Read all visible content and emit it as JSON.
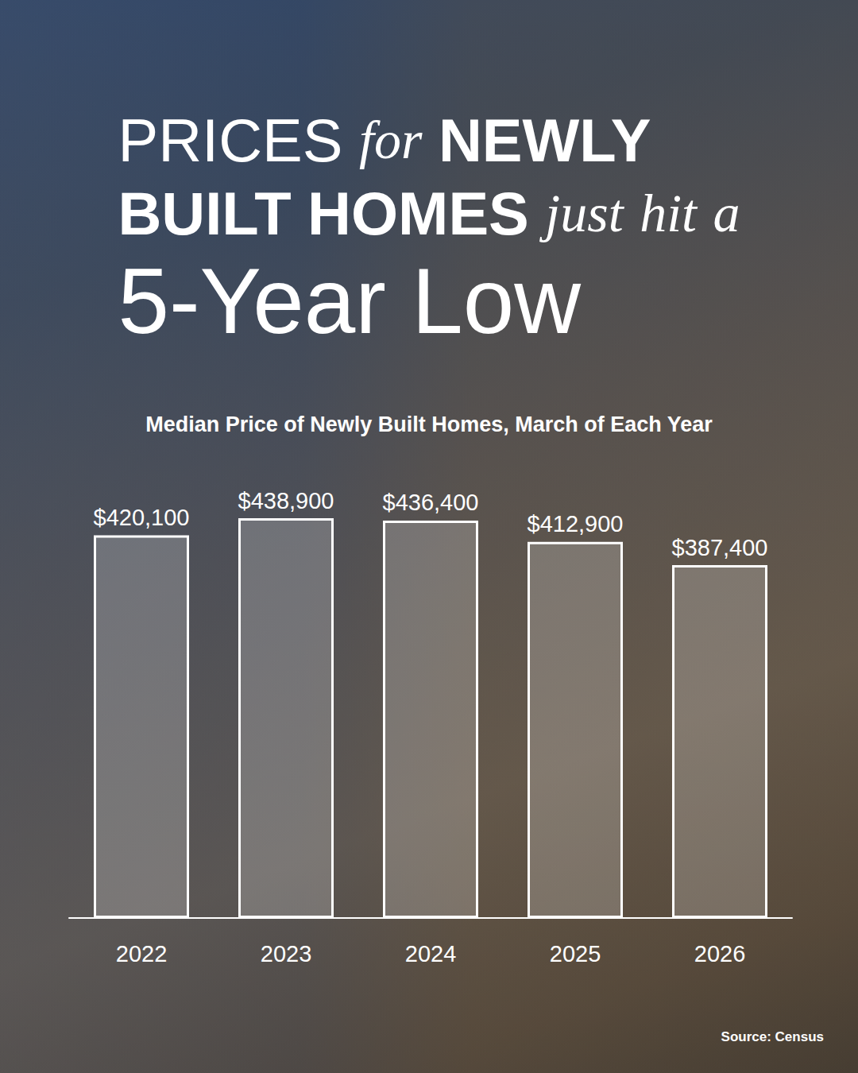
{
  "chart_data": {
    "type": "bar",
    "title": "PRICES for NEWLY BUILT HOMES just hit a 5-Year Low",
    "subtitle": "Median Price of Newly Built Homes, March of Each Year",
    "source": "Source: Census",
    "categories": [
      "2022",
      "2023",
      "2024",
      "2025",
      "2026"
    ],
    "values": [
      420100,
      438900,
      436400,
      412900,
      387400
    ],
    "value_labels": [
      "$420,100",
      "$438,900",
      "$436,400",
      "$412,900",
      "$387,400"
    ],
    "color": "#ffffff",
    "ylim": [
      0,
      500000
    ],
    "yticks": [
      0,
      500000
    ],
    "grid": false,
    "data_labels": true,
    "tick_labels": "x"
  }
}
